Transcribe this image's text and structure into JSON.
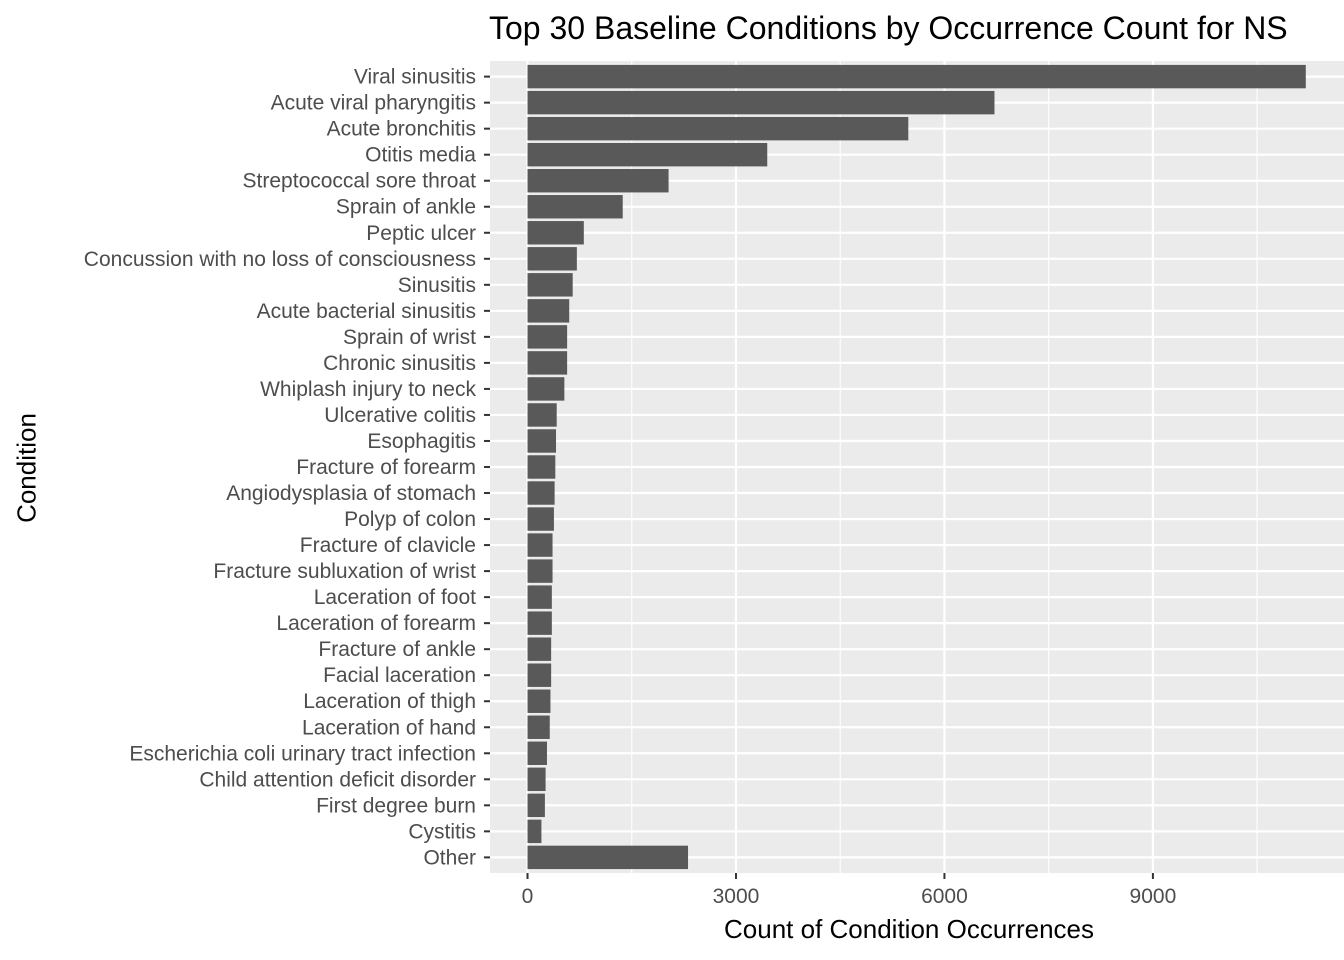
{
  "chart_data": {
    "type": "bar",
    "orientation": "horizontal",
    "title": "Top 30 Baseline Conditions by Occurrence Count for NS",
    "xlabel": "Count of Condition Occurrences",
    "ylabel": "Condition",
    "xlim": [
      -540,
      11750
    ],
    "xticks": [
      0,
      3000,
      6000,
      9000
    ],
    "grid": true,
    "legend": "none",
    "bar_color": "#595959",
    "panel_color": "#ebebeb",
    "categories": [
      "Viral sinusitis",
      "Acute viral pharyngitis",
      "Acute bronchitis",
      "Otitis media",
      "Streptococcal sore throat",
      "Sprain of ankle",
      "Peptic ulcer",
      "Concussion with no loss of consciousness",
      "Sinusitis",
      "Acute bacterial sinusitis",
      "Sprain of wrist",
      "Chronic sinusitis",
      "Whiplash injury to neck",
      "Ulcerative colitis",
      "Esophagitis",
      "Fracture of forearm",
      "Angiodysplasia of stomach",
      "Polyp of colon",
      "Fracture of clavicle",
      "Fracture subluxation of wrist",
      "Laceration of foot",
      "Laceration of forearm",
      "Fracture of ankle",
      "Facial laceration",
      "Laceration of thigh",
      "Laceration of hand",
      "Escherichia coli urinary tract infection",
      "Child attention deficit disorder",
      "First degree burn",
      "Cystitis",
      "Other"
    ],
    "values": [
      11200,
      6720,
      5480,
      3450,
      2030,
      1370,
      810,
      710,
      650,
      600,
      570,
      570,
      530,
      420,
      410,
      400,
      390,
      380,
      360,
      360,
      350,
      350,
      340,
      340,
      330,
      320,
      280,
      260,
      250,
      200,
      2310
    ]
  }
}
